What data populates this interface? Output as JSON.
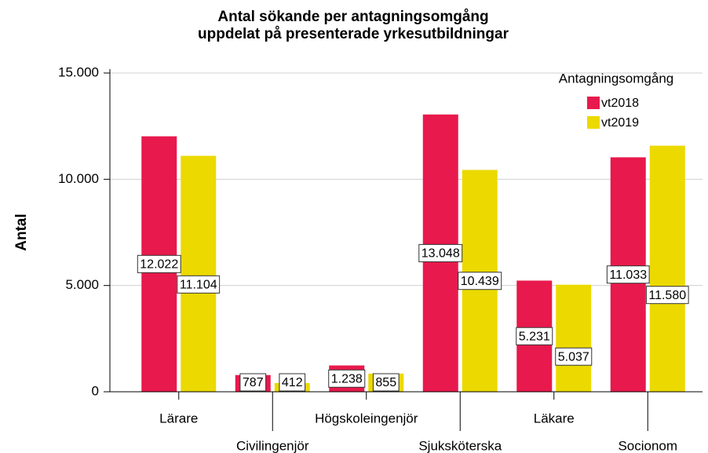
{
  "chart_data": {
    "type": "bar",
    "title": [
      "Antal sökande per antagningsomgång",
      "uppdelat på presenterade yrkesutbildningar"
    ],
    "ylabel": "Antal",
    "legend_title": "Antagningsomgång",
    "legend_position": "upper right",
    "grid": true,
    "categories": [
      "Lärare",
      "Civilingenjör",
      "Högskoleingenjör",
      "Sjuksköterska",
      "Läkare",
      "Socionom"
    ],
    "series": [
      {
        "name": "vt2018",
        "color": "#e8194c",
        "values": [
          12022,
          787,
          1238,
          13048,
          5231,
          11033
        ],
        "value_labels": [
          "12.022",
          "787",
          "1.238",
          "13.048",
          "5.231",
          "11.033"
        ]
      },
      {
        "name": "vt2019",
        "color": "#ebd900",
        "values": [
          11104,
          412,
          855,
          10439,
          5037,
          11580
        ],
        "value_labels": [
          "11.104",
          "412",
          "855",
          "10.439",
          "5.037",
          "11.580"
        ]
      }
    ],
    "ylim": [
      0,
      15000
    ],
    "yticks": [
      0,
      {
        "value": 5000,
        "label": "5.000"
      },
      {
        "value": 10000,
        "label": "10.000"
      },
      {
        "value": 15000,
        "label": "15.000"
      }
    ]
  }
}
